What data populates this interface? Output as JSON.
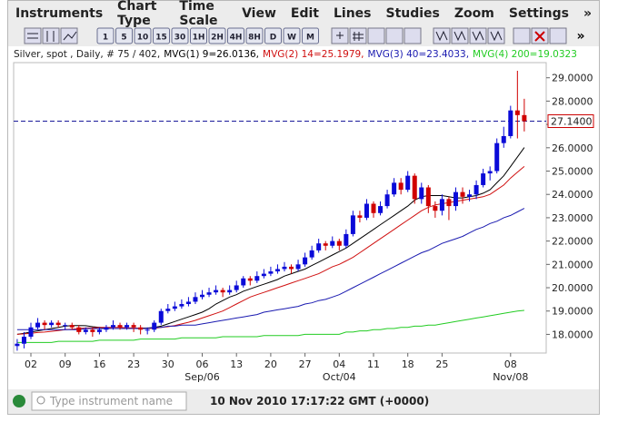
{
  "menu": [
    "Instruments",
    "Chart Type",
    "Time Scale",
    "View",
    "Edit",
    "Lines",
    "Studies",
    "Zoom",
    "Settings",
    "»"
  ],
  "toolbar": [
    "1",
    "5",
    "10",
    "15",
    "30",
    "1H",
    "2H",
    "4H",
    "8H",
    "D",
    "W",
    "M"
  ],
  "toolbar_more": "»",
  "chart_data": {
    "type": "candlestick",
    "header": "Silver, spot , Daily, # 75 / 402,",
    "categories": [
      null,
      null,
      "02",
      null,
      null,
      null,
      null,
      "09",
      null,
      null,
      null,
      null,
      "16",
      null,
      null,
      null,
      null,
      "23",
      null,
      null,
      null,
      null,
      "30",
      null,
      null,
      null,
      null,
      "06",
      null,
      null,
      null,
      null,
      "13",
      null,
      null,
      null,
      null,
      "20",
      null,
      null,
      null,
      null,
      "27",
      null,
      null,
      null,
      null,
      "04",
      null,
      null,
      null,
      null,
      "11",
      null,
      null,
      null,
      null,
      "18",
      null,
      null,
      null,
      null,
      "25",
      null,
      null,
      null,
      null,
      null,
      null,
      null,
      null,
      null,
      "08",
      null,
      null
    ],
    "month_labels": [
      null,
      null,
      null,
      null,
      null,
      null,
      null,
      null,
      null,
      null,
      null,
      null,
      null,
      null,
      null,
      null,
      null,
      null,
      null,
      null,
      null,
      null,
      null,
      null,
      null,
      null,
      null,
      "Sep/06",
      null,
      null,
      null,
      null,
      null,
      null,
      null,
      null,
      null,
      null,
      null,
      null,
      null,
      null,
      null,
      null,
      null,
      null,
      null,
      "Oct/04",
      null,
      null,
      null,
      null,
      null,
      null,
      null,
      null,
      null,
      null,
      null,
      null,
      null,
      null,
      null,
      null,
      null,
      null,
      null,
      null,
      null,
      null,
      null,
      null,
      "Nov/08",
      null,
      null
    ],
    "open": [
      17.5,
      17.6,
      17.9,
      18.3,
      18.5,
      18.4,
      18.5,
      18.4,
      18.4,
      18.3,
      18.1,
      18.2,
      18.1,
      18.2,
      18.3,
      18.4,
      18.3,
      18.4,
      18.3,
      18.2,
      18.2,
      18.5,
      19.0,
      19.1,
      19.2,
      19.3,
      19.4,
      19.6,
      19.7,
      19.8,
      19.9,
      19.8,
      19.9,
      20.1,
      20.4,
      20.3,
      20.5,
      20.6,
      20.7,
      20.8,
      20.9,
      20.8,
      21.0,
      21.3,
      21.6,
      21.9,
      21.8,
      22.0,
      21.8,
      22.3,
      23.1,
      23.0,
      23.6,
      23.2,
      23.5,
      24.0,
      24.5,
      24.2,
      24.8,
      23.8,
      24.3,
      23.5,
      23.3,
      23.8,
      23.5,
      24.1,
      23.9,
      24.0,
      24.4,
      24.9,
      25.0,
      26.2,
      26.5,
      27.6,
      27.4
    ],
    "high": [
      17.8,
      18.1,
      18.5,
      18.7,
      18.6,
      18.6,
      18.6,
      18.5,
      18.5,
      18.4,
      18.3,
      18.3,
      18.3,
      18.4,
      18.6,
      18.5,
      18.5,
      18.5,
      18.4,
      18.3,
      18.6,
      19.1,
      19.3,
      19.4,
      19.5,
      19.6,
      19.8,
      19.9,
      20.0,
      20.1,
      20.0,
      20.1,
      20.3,
      20.5,
      20.5,
      20.7,
      20.8,
      20.9,
      21.0,
      21.1,
      21.0,
      21.2,
      21.5,
      21.8,
      22.1,
      22.0,
      22.2,
      22.1,
      22.5,
      23.3,
      23.3,
      23.8,
      23.7,
      23.7,
      24.2,
      24.7,
      24.7,
      25.0,
      24.9,
      24.5,
      24.4,
      23.7,
      24.0,
      23.9,
      24.3,
      24.3,
      24.2,
      24.6,
      25.1,
      25.2,
      26.4,
      26.9,
      27.8,
      29.3,
      28.1
    ],
    "low": [
      17.3,
      17.4,
      17.8,
      18.2,
      18.2,
      18.3,
      18.3,
      18.2,
      18.2,
      18.0,
      18.0,
      17.9,
      18.0,
      18.1,
      18.2,
      18.2,
      18.2,
      18.1,
      18.0,
      18.0,
      18.1,
      18.4,
      18.9,
      19.0,
      19.1,
      19.2,
      19.3,
      19.5,
      19.6,
      19.7,
      19.6,
      19.7,
      19.8,
      20.0,
      20.1,
      20.2,
      20.4,
      20.5,
      20.6,
      20.7,
      20.6,
      20.7,
      20.9,
      21.2,
      21.5,
      21.6,
      21.7,
      21.6,
      21.7,
      22.2,
      22.8,
      22.9,
      23.0,
      23.1,
      23.4,
      23.9,
      24.0,
      24.1,
      23.6,
      23.6,
      23.2,
      23.0,
      23.1,
      22.9,
      23.3,
      23.6,
      23.7,
      23.8,
      24.3,
      24.6,
      24.9,
      26.0,
      26.4,
      26.4,
      26.7
    ],
    "close": [
      17.6,
      17.9,
      18.3,
      18.5,
      18.4,
      18.5,
      18.4,
      18.4,
      18.3,
      18.1,
      18.2,
      18.1,
      18.2,
      18.3,
      18.4,
      18.3,
      18.4,
      18.3,
      18.2,
      18.2,
      18.5,
      19.0,
      19.1,
      19.2,
      19.3,
      19.4,
      19.6,
      19.7,
      19.8,
      19.9,
      19.8,
      19.9,
      20.1,
      20.4,
      20.3,
      20.5,
      20.6,
      20.7,
      20.8,
      20.9,
      20.8,
      21.0,
      21.3,
      21.6,
      21.9,
      21.8,
      22.0,
      21.8,
      22.3,
      23.1,
      23.0,
      23.6,
      23.2,
      23.5,
      24.0,
      24.5,
      24.2,
      24.8,
      23.8,
      24.3,
      23.5,
      23.3,
      23.8,
      23.5,
      24.1,
      23.9,
      24.0,
      24.4,
      24.9,
      25.0,
      26.2,
      26.5,
      27.6,
      27.4,
      27.14
    ],
    "up_color": "#0a0ad8",
    "down_color": "#d00000",
    "series": [
      {
        "name": "MVG(1) 9=26.0136,",
        "color": "#000000",
        "values": [
          18.0,
          18.05,
          18.1,
          18.15,
          18.2,
          18.25,
          18.3,
          18.35,
          18.38,
          18.38,
          18.37,
          18.33,
          18.3,
          18.27,
          18.25,
          18.25,
          18.25,
          18.26,
          18.27,
          18.27,
          18.3,
          18.35,
          18.45,
          18.55,
          18.65,
          18.75,
          18.85,
          18.95,
          19.1,
          19.3,
          19.45,
          19.6,
          19.7,
          19.85,
          19.95,
          20.05,
          20.15,
          20.25,
          20.35,
          20.5,
          20.6,
          20.7,
          20.8,
          20.95,
          21.1,
          21.25,
          21.4,
          21.55,
          21.7,
          21.9,
          22.1,
          22.3,
          22.5,
          22.7,
          22.9,
          23.1,
          23.3,
          23.5,
          23.75,
          23.9,
          23.95,
          23.95,
          23.95,
          23.9,
          23.85,
          23.85,
          23.9,
          23.95,
          24.05,
          24.2,
          24.5,
          24.8,
          25.2,
          25.6,
          26.01
        ]
      },
      {
        "name": "MVG(2) 14=25.1979,",
        "color": "#d01010",
        "values": [
          18.0,
          18.02,
          18.05,
          18.08,
          18.1,
          18.13,
          18.16,
          18.2,
          18.22,
          18.25,
          18.27,
          18.28,
          18.3,
          18.3,
          18.3,
          18.3,
          18.28,
          18.27,
          18.26,
          18.25,
          18.26,
          18.3,
          18.33,
          18.38,
          18.45,
          18.52,
          18.6,
          18.7,
          18.8,
          18.9,
          19.0,
          19.15,
          19.3,
          19.45,
          19.6,
          19.7,
          19.8,
          19.9,
          20.0,
          20.1,
          20.2,
          20.3,
          20.4,
          20.5,
          20.6,
          20.75,
          20.9,
          21.0,
          21.15,
          21.3,
          21.5,
          21.7,
          21.9,
          22.1,
          22.3,
          22.5,
          22.7,
          22.9,
          23.1,
          23.3,
          23.45,
          23.55,
          23.6,
          23.65,
          23.7,
          23.75,
          23.8,
          23.85,
          23.9,
          24.0,
          24.2,
          24.4,
          24.7,
          24.95,
          25.2
        ]
      },
      {
        "name": "MVG(3) 40=23.4033,",
        "color": "#1a1ab0",
        "values": [
          18.2,
          18.2,
          18.2,
          18.2,
          18.2,
          18.2,
          18.2,
          18.2,
          18.2,
          18.2,
          18.25,
          18.25,
          18.25,
          18.25,
          18.25,
          18.25,
          18.25,
          18.25,
          18.25,
          18.25,
          18.3,
          18.3,
          18.35,
          18.35,
          18.4,
          18.4,
          18.4,
          18.45,
          18.5,
          18.55,
          18.6,
          18.65,
          18.7,
          18.75,
          18.8,
          18.85,
          18.95,
          19.0,
          19.05,
          19.1,
          19.15,
          19.2,
          19.3,
          19.35,
          19.45,
          19.5,
          19.6,
          19.7,
          19.85,
          20.0,
          20.15,
          20.3,
          20.45,
          20.6,
          20.75,
          20.9,
          21.05,
          21.2,
          21.35,
          21.5,
          21.6,
          21.75,
          21.9,
          22.0,
          22.1,
          22.2,
          22.35,
          22.5,
          22.6,
          22.75,
          22.85,
          23.0,
          23.1,
          23.25,
          23.4
        ]
      },
      {
        "name": "MVG(4) 200=19.0323",
        "color": "#22cc22",
        "values": [
          17.65,
          17.65,
          17.65,
          17.65,
          17.65,
          17.65,
          17.7,
          17.7,
          17.7,
          17.7,
          17.7,
          17.7,
          17.75,
          17.75,
          17.75,
          17.75,
          17.75,
          17.75,
          17.8,
          17.8,
          17.8,
          17.8,
          17.8,
          17.8,
          17.85,
          17.85,
          17.85,
          17.85,
          17.85,
          17.85,
          17.9,
          17.9,
          17.9,
          17.9,
          17.9,
          17.9,
          17.95,
          17.95,
          17.95,
          17.95,
          17.95,
          17.95,
          18.0,
          18.0,
          18.0,
          18.0,
          18.0,
          18.0,
          18.1,
          18.1,
          18.15,
          18.15,
          18.2,
          18.2,
          18.25,
          18.25,
          18.3,
          18.3,
          18.35,
          18.35,
          18.4,
          18.4,
          18.45,
          18.5,
          18.55,
          18.6,
          18.65,
          18.7,
          18.75,
          18.8,
          18.85,
          18.9,
          18.95,
          19.0,
          19.03
        ]
      }
    ],
    "last_price": {
      "value": 27.14,
      "label": "27.1400"
    },
    "ylim": [
      17.2,
      29.65
    ],
    "yticks": [
      {
        "value": 18,
        "label": "18.0000"
      },
      {
        "value": 19,
        "label": "19.0000"
      },
      {
        "value": 20,
        "label": "20.0000"
      },
      {
        "value": 21,
        "label": "21.0000"
      },
      {
        "value": 22,
        "label": "22.0000"
      },
      {
        "value": 23,
        "label": "23.0000"
      },
      {
        "value": 24,
        "label": "24.0000"
      },
      {
        "value": 25,
        "label": "25.0000"
      },
      {
        "value": 26,
        "label": "26.0000"
      },
      {
        "value": 27,
        "label": "27.0000"
      },
      {
        "value": 28,
        "label": "28.0000"
      },
      {
        "value": 29,
        "label": "29.0000"
      }
    ],
    "grid": false
  },
  "status": {
    "search_placeholder": "Type instrument name",
    "timestamp": "10 Nov 2010 17:17:22  GMT (+0000)"
  }
}
